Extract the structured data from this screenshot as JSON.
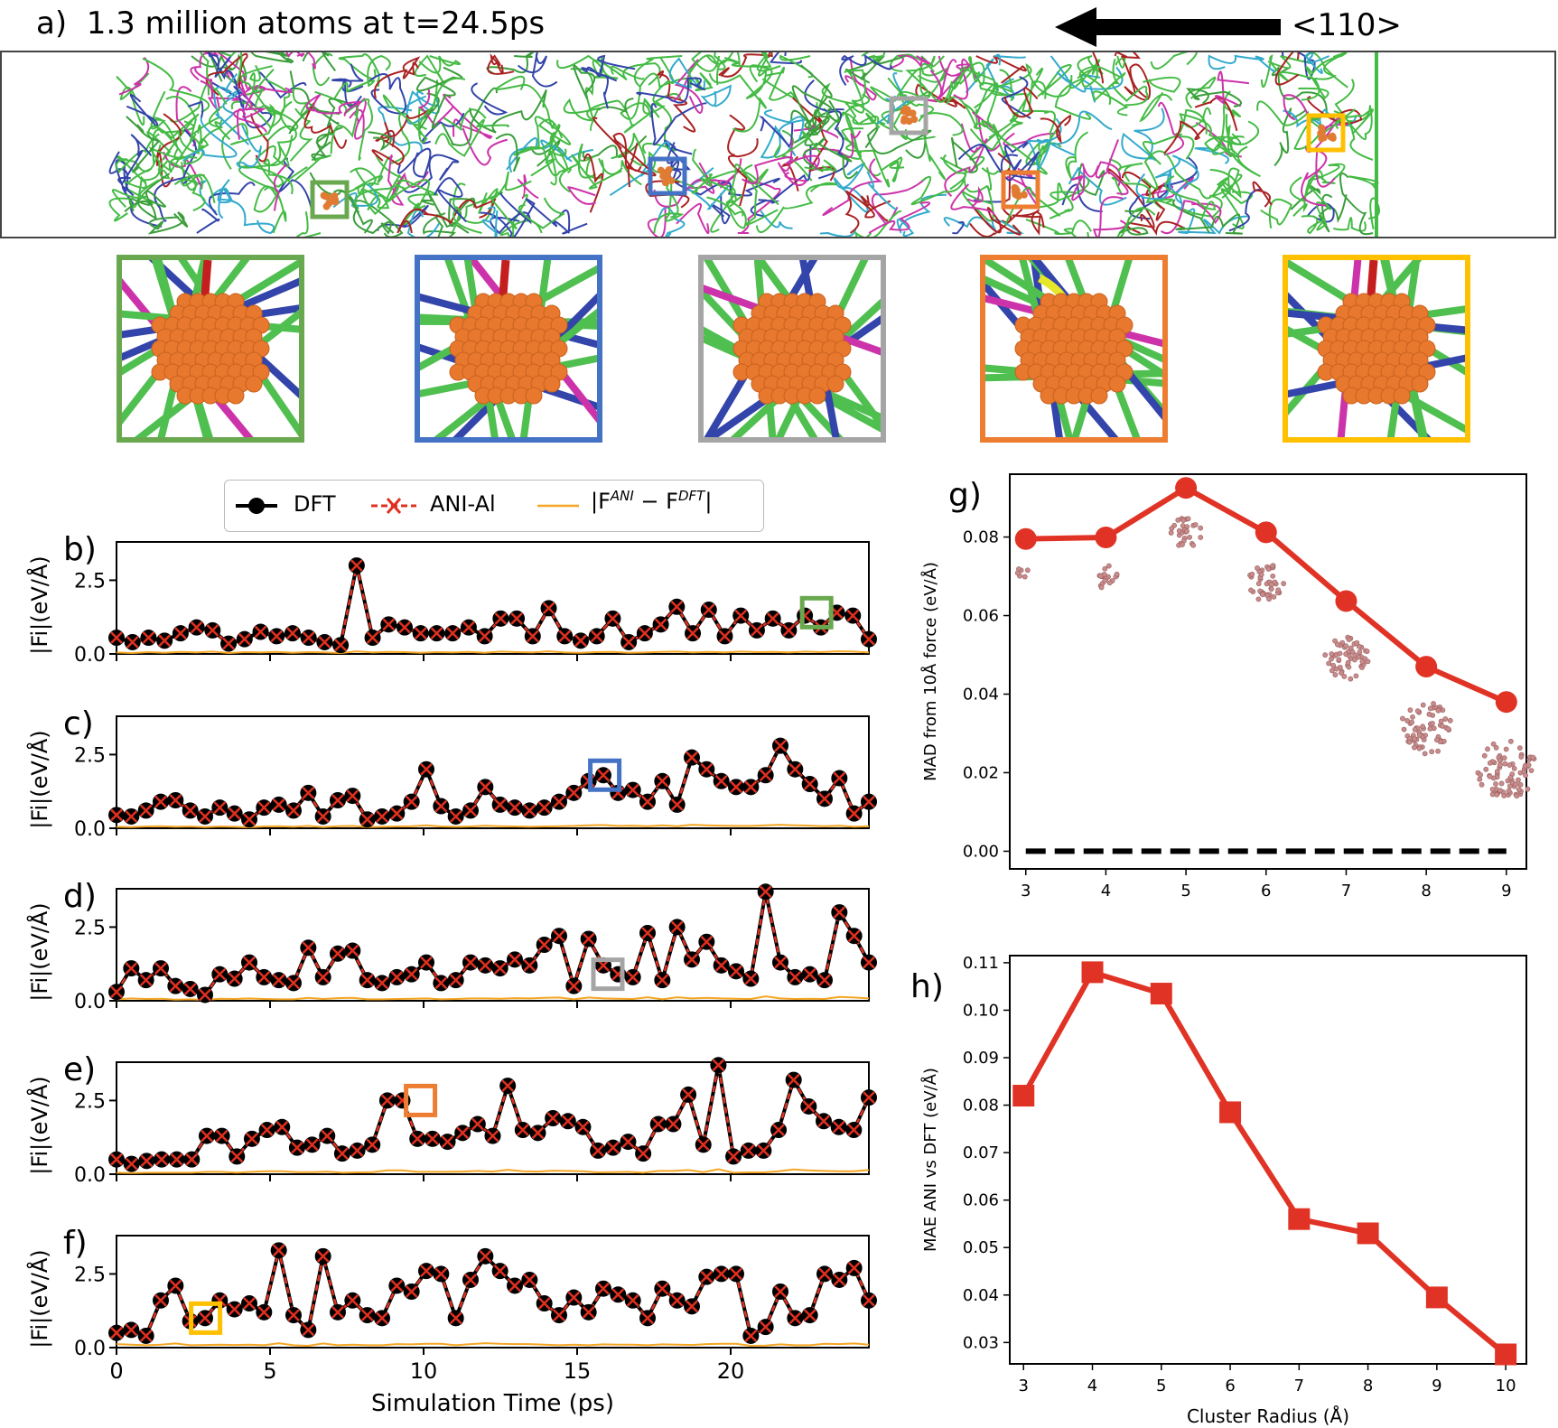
{
  "panel_a": {
    "label": "a)",
    "title": "1.3 million atoms at t=24.5ps",
    "direction_label": "<110>",
    "insets": [
      {
        "name": "green",
        "color": "#6aa84f"
      },
      {
        "name": "blue",
        "color": "#4472c4"
      },
      {
        "name": "gray",
        "color": "#a5a5a5"
      },
      {
        "name": "orange",
        "color": "#ed7d31"
      },
      {
        "name": "yellow",
        "color": "#ffc000"
      }
    ]
  },
  "legend": {
    "dft": "DFT",
    "ani": "ANI-Al",
    "diff_base": "|F",
    "diff_sup1": "ANI",
    "diff_mid": " − F",
    "diff_sup2": "DFT",
    "diff_end": "|"
  },
  "colors": {
    "dft": "#000000",
    "ani": "#e03020",
    "diff": "#f5a623",
    "green": "#6aa84f",
    "blue": "#4472c4",
    "gray": "#a5a5a5",
    "orange": "#ed7d31",
    "yellow": "#ffc000",
    "line_red": "#e03325"
  },
  "time_axis": {
    "xlabel": "Simulation Time (ps)",
    "ticks": [
      "0",
      "5",
      "10",
      "15",
      "20"
    ]
  },
  "chart_data": [
    {
      "id": "b",
      "label": "b)",
      "type": "line",
      "ylabel": "|Fi|(eV/Å)",
      "yticks": [
        "0.0",
        "2.5"
      ],
      "ylim": [
        0,
        3.8
      ],
      "xlim": [
        0,
        24.5
      ],
      "highlight": {
        "t": 22.8,
        "f": 1.4,
        "color": "green"
      },
      "dft": [
        0.55,
        0.4,
        0.55,
        0.45,
        0.7,
        0.9,
        0.8,
        0.35,
        0.5,
        0.75,
        0.6,
        0.7,
        0.55,
        0.4,
        0.3,
        3.0,
        0.55,
        1.0,
        0.9,
        0.7,
        0.7,
        0.7,
        0.9,
        0.6,
        1.2,
        1.2,
        0.6,
        1.55,
        0.6,
        0.45,
        0.6,
        1.2,
        0.4,
        0.7,
        1.0,
        1.6,
        0.7,
        1.5,
        0.6,
        1.3,
        0.8,
        1.2,
        0.8,
        1.3,
        0.9,
        1.4,
        1.3,
        0.5
      ],
      "diff": [
        0.05,
        0.03,
        0.06,
        0.04,
        0.07,
        0.05,
        0.08,
        0.03,
        0.06,
        0.05,
        0.07,
        0.04,
        0.06,
        0.05,
        0.03,
        0.09,
        0.05,
        0.07,
        0.06,
        0.04,
        0.06,
        0.05,
        0.07,
        0.04,
        0.08,
        0.06,
        0.05,
        0.09,
        0.05,
        0.04,
        0.06,
        0.07,
        0.04,
        0.05,
        0.07,
        0.08,
        0.05,
        0.07,
        0.05,
        0.08,
        0.06,
        0.07,
        0.05,
        0.08,
        0.06,
        0.09,
        0.08,
        0.05
      ]
    },
    {
      "id": "c",
      "label": "c)",
      "type": "line",
      "ylabel": "|Fi|(eV/Å)",
      "yticks": [
        "0.0",
        "2.5"
      ],
      "ylim": [
        0,
        3.8
      ],
      "xlim": [
        0,
        24.5
      ],
      "highlight": {
        "t": 15.9,
        "f": 1.8,
        "color": "blue"
      },
      "dft": [
        0.45,
        0.4,
        0.6,
        0.9,
        0.95,
        0.6,
        0.4,
        0.7,
        0.5,
        0.3,
        0.7,
        0.8,
        0.6,
        1.2,
        0.4,
        0.95,
        1.1,
        0.3,
        0.4,
        0.5,
        0.9,
        2.0,
        0.75,
        0.4,
        0.6,
        1.4,
        0.8,
        0.7,
        0.6,
        0.7,
        0.9,
        1.2,
        1.6,
        1.8,
        1.2,
        1.3,
        0.9,
        1.6,
        0.8,
        2.4,
        2.0,
        1.6,
        1.4,
        1.4,
        1.8,
        2.8,
        2.0,
        1.5,
        1.0,
        1.7,
        0.5,
        0.9
      ],
      "diff": [
        0.05,
        0.04,
        0.06,
        0.07,
        0.05,
        0.06,
        0.04,
        0.06,
        0.05,
        0.03,
        0.06,
        0.07,
        0.05,
        0.08,
        0.04,
        0.07,
        0.08,
        0.04,
        0.05,
        0.06,
        0.07,
        0.1,
        0.06,
        0.05,
        0.06,
        0.09,
        0.07,
        0.06,
        0.05,
        0.06,
        0.07,
        0.08,
        0.1,
        0.11,
        0.08,
        0.09,
        0.07,
        0.1,
        0.07,
        0.12,
        0.1,
        0.09,
        0.08,
        0.08,
        0.1,
        0.12,
        0.1,
        0.09,
        0.07,
        0.09,
        0.05,
        0.07
      ]
    },
    {
      "id": "d",
      "label": "d)",
      "type": "line",
      "ylabel": "|Fi|(eV/Å)",
      "yticks": [
        "0.0",
        "2.5"
      ],
      "ylim": [
        0,
        3.8
      ],
      "xlim": [
        0,
        24.5
      ],
      "highlight": {
        "t": 16.0,
        "f": 0.9,
        "color": "gray"
      },
      "dft": [
        0.3,
        1.1,
        0.7,
        1.1,
        0.5,
        0.4,
        0.2,
        0.9,
        0.75,
        1.3,
        0.8,
        0.7,
        0.6,
        1.8,
        0.8,
        1.6,
        1.7,
        0.7,
        0.6,
        0.8,
        0.9,
        1.3,
        0.6,
        0.7,
        1.3,
        1.2,
        1.1,
        1.4,
        1.2,
        1.9,
        2.2,
        0.5,
        2.1,
        1.2,
        0.9,
        0.8,
        2.3,
        0.7,
        2.5,
        1.4,
        2.0,
        1.2,
        1.0,
        0.75,
        3.7,
        1.3,
        0.8,
        0.9,
        0.7,
        3.0,
        2.2,
        1.3
      ],
      "diff": [
        0.05,
        0.08,
        0.06,
        0.07,
        0.04,
        0.05,
        0.03,
        0.07,
        0.06,
        0.08,
        0.06,
        0.05,
        0.05,
        0.1,
        0.06,
        0.09,
        0.1,
        0.05,
        0.05,
        0.06,
        0.07,
        0.08,
        0.05,
        0.06,
        0.08,
        0.08,
        0.07,
        0.09,
        0.08,
        0.1,
        0.11,
        0.05,
        0.11,
        0.08,
        0.07,
        0.06,
        0.12,
        0.05,
        0.12,
        0.08,
        0.1,
        0.08,
        0.07,
        0.06,
        0.15,
        0.08,
        0.06,
        0.07,
        0.06,
        0.13,
        0.11,
        0.08
      ]
    },
    {
      "id": "e",
      "label": "e)",
      "type": "line",
      "ylabel": "|Fi|(eV/Å)",
      "yticks": [
        "0.0",
        "2.5"
      ],
      "ylim": [
        0,
        3.8
      ],
      "xlim": [
        0,
        24.5
      ],
      "highlight": {
        "t": 9.9,
        "f": 2.5,
        "color": "orange"
      },
      "dft": [
        0.5,
        0.35,
        0.45,
        0.5,
        0.5,
        0.5,
        1.3,
        1.3,
        0.6,
        1.2,
        1.5,
        1.6,
        0.9,
        1.0,
        1.3,
        0.7,
        0.8,
        1.0,
        2.5,
        2.5,
        1.2,
        1.2,
        1.1,
        1.4,
        1.7,
        1.3,
        3.0,
        1.5,
        1.4,
        1.9,
        1.8,
        1.6,
        0.8,
        0.9,
        1.1,
        0.7,
        1.7,
        1.7,
        2.7,
        1.0,
        3.7,
        0.6,
        0.8,
        0.8,
        1.5,
        3.2,
        2.3,
        1.8,
        1.6,
        1.5,
        2.6
      ],
      "diff": [
        0.05,
        0.04,
        0.05,
        0.05,
        0.05,
        0.05,
        0.08,
        0.08,
        0.05,
        0.08,
        0.1,
        0.1,
        0.07,
        0.07,
        0.09,
        0.05,
        0.06,
        0.07,
        0.13,
        0.13,
        0.08,
        0.08,
        0.08,
        0.09,
        0.11,
        0.09,
        0.15,
        0.1,
        0.09,
        0.12,
        0.11,
        0.1,
        0.06,
        0.07,
        0.08,
        0.05,
        0.11,
        0.11,
        0.14,
        0.07,
        0.17,
        0.05,
        0.06,
        0.06,
        0.1,
        0.16,
        0.13,
        0.11,
        0.1,
        0.1,
        0.14
      ]
    },
    {
      "id": "f",
      "label": "f)",
      "type": "line",
      "ylabel": "|Fi|(eV/Å)",
      "yticks": [
        "0.0",
        "2.5"
      ],
      "ylim": [
        0,
        3.8
      ],
      "xlim": [
        0,
        24.5
      ],
      "highlight": {
        "t": 2.9,
        "f": 1.0,
        "color": "yellow"
      },
      "dft": [
        0.5,
        0.6,
        0.4,
        1.6,
        2.1,
        0.9,
        1.0,
        1.6,
        1.3,
        1.5,
        1.2,
        3.3,
        1.1,
        0.6,
        3.1,
        1.2,
        1.6,
        1.1,
        1.0,
        2.1,
        1.9,
        2.6,
        2.5,
        1.0,
        2.3,
        3.1,
        2.6,
        2.1,
        2.3,
        1.5,
        1.1,
        1.7,
        1.2,
        2.0,
        1.8,
        1.6,
        1.0,
        2.0,
        1.6,
        1.4,
        2.4,
        2.5,
        2.5,
        0.4,
        0.7,
        1.9,
        1.0,
        1.1,
        2.5,
        2.3,
        2.7,
        1.6
      ],
      "diff": [
        0.12,
        0.1,
        0.08,
        0.1,
        0.14,
        0.08,
        0.09,
        0.1,
        0.09,
        0.1,
        0.08,
        0.15,
        0.08,
        0.06,
        0.14,
        0.08,
        0.1,
        0.08,
        0.08,
        0.12,
        0.11,
        0.13,
        0.13,
        0.08,
        0.12,
        0.15,
        0.13,
        0.12,
        0.12,
        0.1,
        0.08,
        0.1,
        0.08,
        0.11,
        0.1,
        0.1,
        0.08,
        0.11,
        0.1,
        0.09,
        0.12,
        0.13,
        0.13,
        0.06,
        0.07,
        0.11,
        0.08,
        0.08,
        0.13,
        0.12,
        0.14,
        0.1
      ]
    },
    {
      "id": "g",
      "label": "g)",
      "type": "line",
      "ylabel": "MAD from 10Å force (eV/Å)",
      "x": [
        3,
        4,
        5,
        6,
        7,
        8,
        9
      ],
      "values": [
        0.0795,
        0.0799,
        0.0925,
        0.0812,
        0.0637,
        0.047,
        0.038
      ],
      "baseline": 0.0,
      "xticks": [
        "3",
        "4",
        "5",
        "6",
        "7",
        "8",
        "9"
      ],
      "yticks": [
        "0.00",
        "0.02",
        "0.04",
        "0.06",
        "0.08"
      ],
      "xlim": [
        2.8,
        9.25
      ],
      "ylim": [
        -0.0045,
        0.096
      ]
    },
    {
      "id": "h",
      "label": "h)",
      "type": "line",
      "ylabel": "MAE ANI vs DFT (eV/Å)",
      "xlabel": "Cluster Radius (Å)",
      "x": [
        3,
        4,
        5,
        6,
        7,
        8,
        9,
        10
      ],
      "values": [
        0.082,
        0.108,
        0.1035,
        0.0785,
        0.056,
        0.053,
        0.0395,
        0.0275
      ],
      "xticks": [
        "3",
        "4",
        "5",
        "6",
        "7",
        "8",
        "9",
        "10"
      ],
      "yticks": [
        "0.03",
        "0.04",
        "0.05",
        "0.06",
        "0.07",
        "0.08",
        "0.09",
        "0.10",
        "0.11"
      ],
      "xlim": [
        2.8,
        10.3
      ],
      "ylim": [
        0.0255,
        0.1115
      ]
    }
  ]
}
